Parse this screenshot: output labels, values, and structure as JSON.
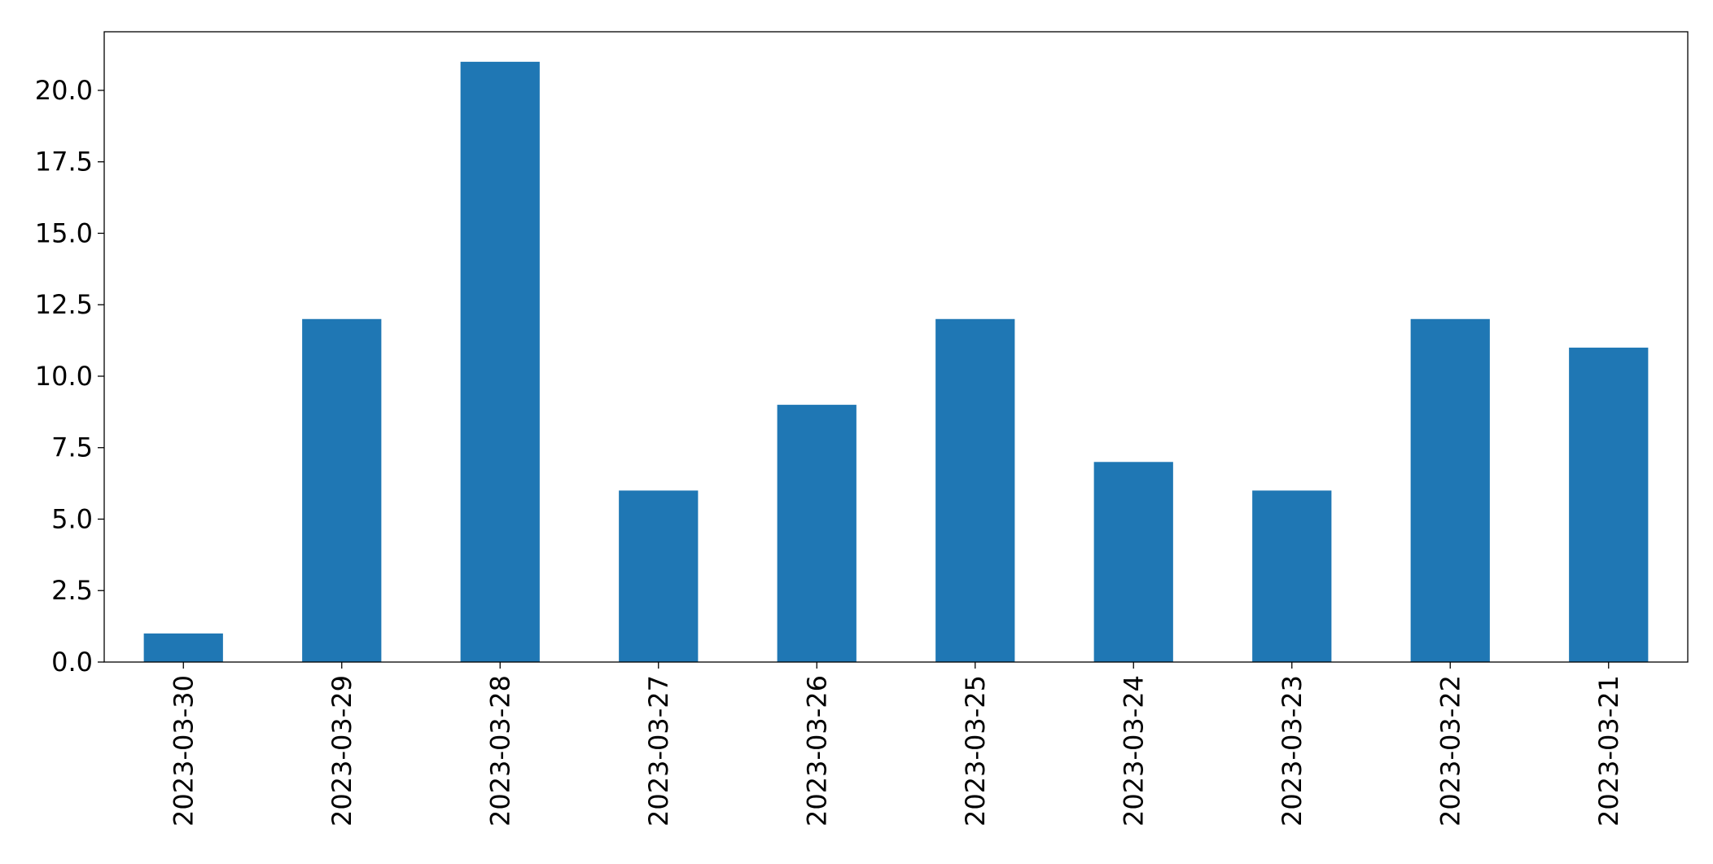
{
  "chart_data": {
    "type": "bar",
    "categories": [
      "2023-03-30",
      "2023-03-29",
      "2023-03-28",
      "2023-03-27",
      "2023-03-26",
      "2023-03-25",
      "2023-03-24",
      "2023-03-23",
      "2023-03-22",
      "2023-03-21"
    ],
    "values": [
      1,
      12,
      21,
      6,
      9,
      12,
      7,
      6,
      12,
      11
    ],
    "color": "#1f77b4",
    "ylim": [
      0,
      22.05
    ],
    "yticks": [
      {
        "value": 0,
        "label": "0.0"
      },
      2.5,
      {
        "value": 5,
        "label": "5.0"
      },
      7.5,
      {
        "value": 10,
        "label": "10.0"
      },
      12.5,
      {
        "value": 15,
        "label": "15.0"
      },
      17.5,
      {
        "value": 20,
        "label": "20.0"
      }
    ],
    "grid": false
  }
}
